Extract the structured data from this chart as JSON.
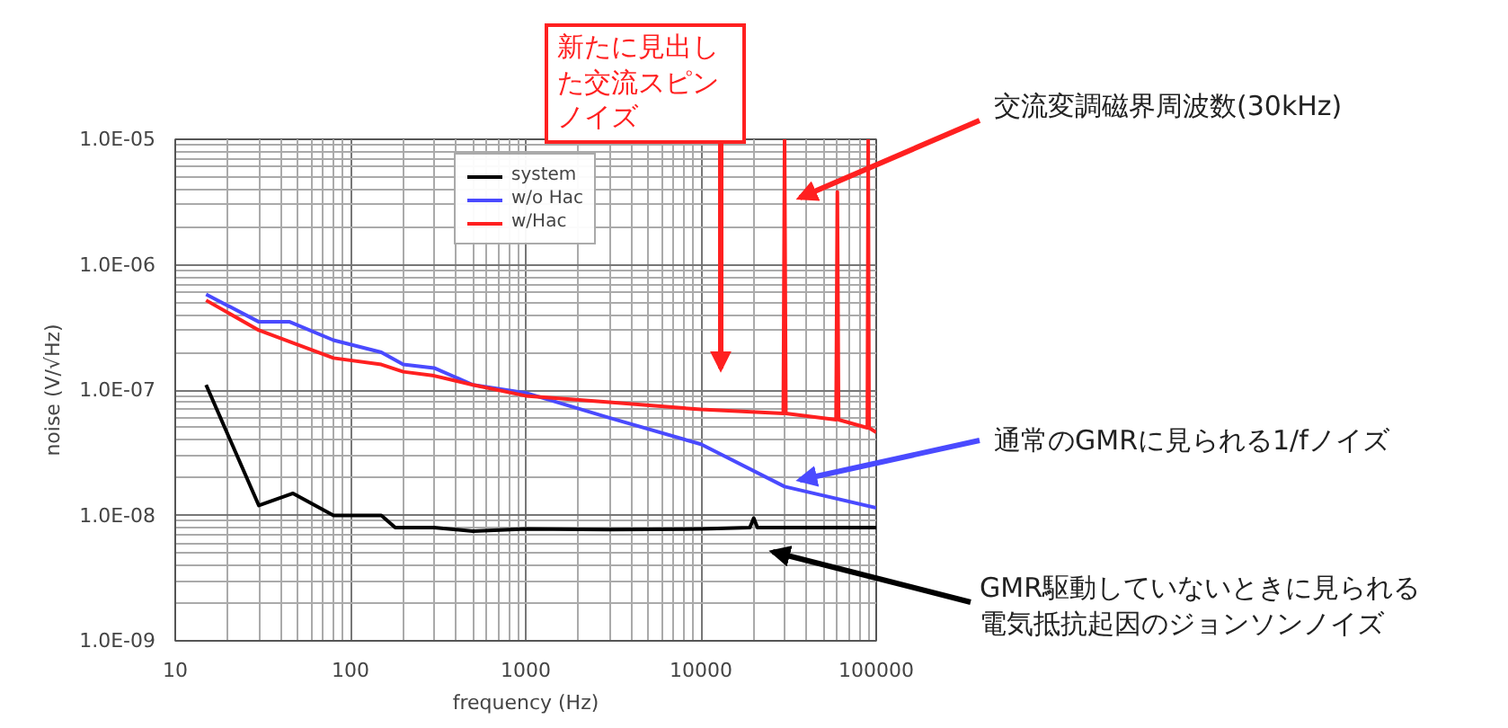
{
  "chart_data": {
    "type": "line",
    "xlabel": "frequency (Hz)",
    "ylabel": "noise (V/√Hz)",
    "log": "xy",
    "grid": true,
    "legend": "top",
    "xlim": [
      10,
      100000
    ],
    "ylim": [
      1e-09,
      1e-05
    ],
    "xticks": [
      10,
      100,
      1000,
      10000,
      100000
    ],
    "yticks": [
      {
        "value": 1e-09,
        "label": "1.0E-09"
      },
      {
        "value": 1e-08,
        "label": "1.0E-08"
      },
      {
        "value": 1e-07,
        "label": "1.0E-07"
      },
      {
        "value": 1e-06,
        "label": "1.0E-06"
      },
      {
        "value": 1e-05,
        "label": "1.0E-05"
      }
    ],
    "series": [
      {
        "name": "system",
        "color": "#000000",
        "x": [
          15,
          30,
          47,
          80,
          150,
          180,
          300,
          500,
          1000,
          3000,
          10000,
          19000,
          20000,
          21000,
          50000,
          100000
        ],
        "values": [
          1.1e-07,
          1.2e-08,
          1.5e-08,
          1e-08,
          1e-08,
          8e-09,
          8e-09,
          7.5e-09,
          7.8e-09,
          7.7e-09,
          7.8e-09,
          8e-09,
          9.5e-09,
          8e-09,
          8e-09,
          8e-09
        ]
      },
      {
        "name": "w/o Hac",
        "color": "#4a4aff",
        "x": [
          15,
          30,
          45,
          80,
          150,
          200,
          300,
          500,
          1000,
          3000,
          10000,
          30000,
          100000
        ],
        "values": [
          5.8e-07,
          3.5e-07,
          3.5e-07,
          2.5e-07,
          2e-07,
          1.6e-07,
          1.5e-07,
          1.1e-07,
          9.5e-08,
          6e-08,
          3.7e-08,
          1.7e-08,
          1.15e-08
        ]
      },
      {
        "name": "w/Hac",
        "color": "#ff2020",
        "x": [
          15,
          30,
          80,
          150,
          200,
          300,
          500,
          1000,
          3000,
          10000,
          29500,
          30000,
          30500,
          59000,
          60000,
          61000,
          89000,
          90000,
          91000,
          100000
        ],
        "values": [
          5.2e-07,
          3e-07,
          1.8e-07,
          1.6e-07,
          1.4e-07,
          1.3e-07,
          1.1e-07,
          9e-08,
          8e-08,
          7e-08,
          6.5e-08,
          1e-05,
          6.5e-08,
          5.8e-08,
          3.8e-06,
          5.8e-08,
          5e-08,
          1e-05,
          5e-08,
          4.6e-08
        ]
      }
    ],
    "annotations": [
      "新たに見出した交流スピンノイズ",
      "交流変調磁界周波数(30kHz)",
      "通常のGMRに見られる1/fノイズ",
      "GMR駆動していないときに見られる電気抵抗起因のジョンソンノイズ"
    ]
  }
}
